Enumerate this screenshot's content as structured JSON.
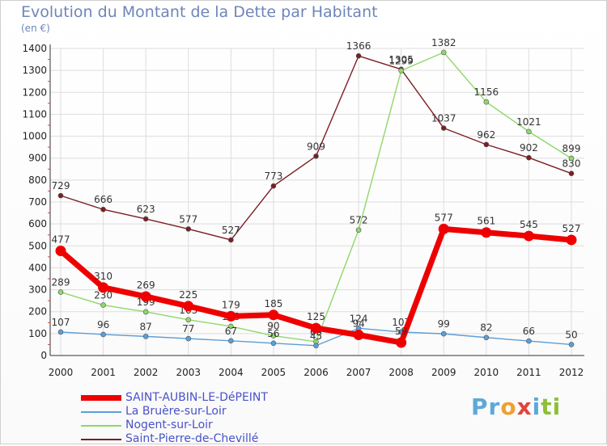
{
  "title": "Evolution du Montant de la Dette par Habitant",
  "unit_label": "(en €)",
  "logo_text": "Proxiti",
  "chart_data": {
    "type": "line",
    "title": "Evolution du Montant de la Dette par Habitant",
    "ylabel": "(en €)",
    "xlabel": "",
    "categories": [
      "2000",
      "2001",
      "2002",
      "2003",
      "2004",
      "2005",
      "2006",
      "2007",
      "2008",
      "2009",
      "2010",
      "2011",
      "2012"
    ],
    "ylim": [
      0,
      1400
    ],
    "yticks": [
      0,
      100,
      200,
      300,
      400,
      500,
      600,
      700,
      800,
      900,
      1000,
      1100,
      1200,
      1300,
      1400
    ],
    "grid": true,
    "legend_position": "bottom-left",
    "series": [
      {
        "name": "SAINT-AUBIN-LE-DéPEINT",
        "color": "#ee0000",
        "values": [
          477,
          310,
          269,
          225,
          179,
          185,
          125,
          94,
          59,
          577,
          561,
          545,
          527
        ]
      },
      {
        "name": "La Bruère-sur-Loir",
        "color": "#5c9ed6",
        "values": [
          107,
          96,
          87,
          77,
          67,
          56,
          45,
          124,
          107,
          99,
          82,
          66,
          50
        ]
      },
      {
        "name": "Nogent-sur-Loir",
        "color": "#8fd86a",
        "values": [
          289,
          230,
          199,
          163,
          133,
          90,
          63,
          572,
          1299,
          1382,
          1156,
          1021,
          899
        ]
      },
      {
        "name": "Saint-Pierre-de-Chevillé",
        "color": "#7a1f24",
        "values": [
          729,
          666,
          623,
          577,
          527,
          773,
          909,
          1366,
          1305,
          1037,
          962,
          902,
          830
        ]
      }
    ]
  }
}
